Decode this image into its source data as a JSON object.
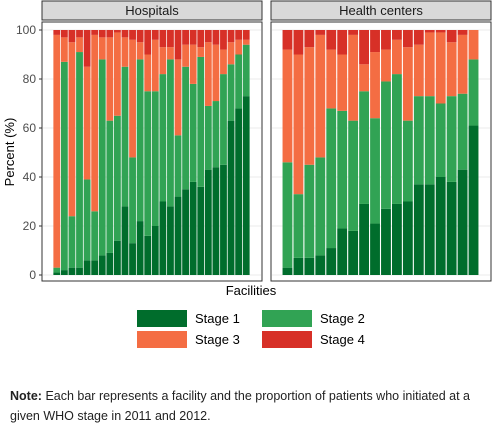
{
  "chart_data": {
    "type": "bar",
    "stacked": true,
    "ylabel": "Percent (%)",
    "xlabel": "Facilities",
    "ylim": [
      0,
      100
    ],
    "yticks": [
      0,
      20,
      40,
      60,
      80,
      100
    ],
    "grid": true,
    "legend_position": "bottom",
    "stage_colors": {
      "Stage 1": "#006d2c",
      "Stage 2": "#31a354",
      "Stage 3": "#f46d43",
      "Stage 4": "#d73027"
    },
    "legend": [
      "Stage 1",
      "Stage 2",
      "Stage 3",
      "Stage 4"
    ],
    "panels": [
      {
        "title": "Hospitals",
        "bars": [
          [
            1,
            2,
            95,
            2
          ],
          [
            2,
            85,
            10,
            3
          ],
          [
            3,
            21,
            71,
            5
          ],
          [
            3,
            88,
            6,
            3
          ],
          [
            6,
            33,
            46,
            15
          ],
          [
            6,
            20,
            72,
            2
          ],
          [
            8,
            80,
            9,
            3
          ],
          [
            9,
            54,
            34,
            3
          ],
          [
            14,
            51,
            34,
            1
          ],
          [
            28,
            57,
            12,
            3
          ],
          [
            13,
            35,
            48,
            4
          ],
          [
            22,
            66,
            7,
            5
          ],
          [
            16,
            59,
            15,
            10
          ],
          [
            20,
            55,
            21,
            4
          ],
          [
            30,
            52,
            11,
            7
          ],
          [
            28,
            60,
            5,
            7
          ],
          [
            32,
            25,
            31,
            12
          ],
          [
            35,
            50,
            9,
            6
          ],
          [
            38,
            40,
            16,
            6
          ],
          [
            36,
            53,
            4,
            7
          ],
          [
            43,
            26,
            26,
            5
          ],
          [
            44,
            27,
            23,
            6
          ],
          [
            45,
            37,
            10,
            8
          ],
          [
            63,
            23,
            9,
            5
          ],
          [
            68,
            22,
            6,
            4
          ],
          [
            73,
            21,
            2,
            4
          ]
        ]
      },
      {
        "title": "Health centers",
        "bars": [
          [
            3,
            43,
            46,
            8
          ],
          [
            7,
            26,
            57,
            10
          ],
          [
            7,
            38,
            48,
            7
          ],
          [
            8,
            40,
            50,
            2
          ],
          [
            11,
            57,
            24,
            8
          ],
          [
            19,
            48,
            23,
            10
          ],
          [
            18,
            45,
            35,
            2
          ],
          [
            29,
            46,
            11,
            14
          ],
          [
            21,
            43,
            27,
            9
          ],
          [
            27,
            52,
            13,
            8
          ],
          [
            29,
            53,
            14,
            4
          ],
          [
            30,
            33,
            30,
            7
          ],
          [
            37,
            36,
            21,
            6
          ],
          [
            37,
            36,
            26,
            1
          ],
          [
            40,
            30,
            29,
            1
          ],
          [
            38,
            35,
            22,
            5
          ],
          [
            43,
            31,
            24,
            2
          ],
          [
            61,
            27,
            12,
            0
          ]
        ]
      }
    ]
  },
  "note": {
    "label": "Note:",
    "text": "Each bar represents a facility and the proportion of patients who initiated at a given WHO stage in 2011 and 2012."
  }
}
